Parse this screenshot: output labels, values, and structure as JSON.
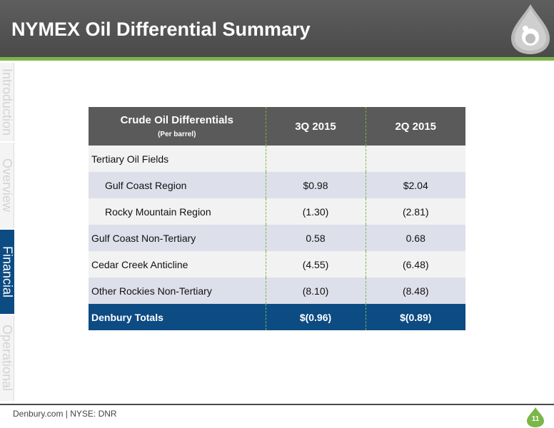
{
  "header": {
    "title": "NYMEX Oil Differential Summary",
    "bar_color": "#555555",
    "stripe_color": "#7ab648"
  },
  "sidebar": {
    "tabs": [
      {
        "label": "Introduction",
        "active": false
      },
      {
        "label": "Overview",
        "active": false
      },
      {
        "label": "Financial",
        "active": true
      },
      {
        "label": "Operational",
        "active": false
      }
    ],
    "active_color": "#0d4b83"
  },
  "table": {
    "header": {
      "label": "Crude Oil Differentials",
      "sublabel": "(Per barrel)",
      "col1": "3Q 2015",
      "col2": "2Q 2015"
    },
    "rows": [
      {
        "label": "Tertiary Oil Fields",
        "v1": "",
        "v2": ""
      },
      {
        "label": "Gulf Coast Region",
        "v1": "$0.98",
        "v2": "$2.04"
      },
      {
        "label": "Rocky Mountain Region",
        "v1": "(1.30)",
        "v2": "(2.81)"
      },
      {
        "label": "Gulf Coast Non-Tertiary",
        "v1": "0.58",
        "v2": "0.68"
      },
      {
        "label": "Cedar Creek Anticline",
        "v1": "(4.55)",
        "v2": "(6.48)"
      },
      {
        "label": "Other Rockies Non-Tertiary",
        "v1": "(8.10)",
        "v2": "(8.48)"
      }
    ],
    "total": {
      "label": "Denbury Totals",
      "v1": "$(0.96)",
      "v2": "$(0.89)"
    }
  },
  "footer": {
    "text": "Denbury.com | NYSE: DNR",
    "page_number": "11"
  }
}
